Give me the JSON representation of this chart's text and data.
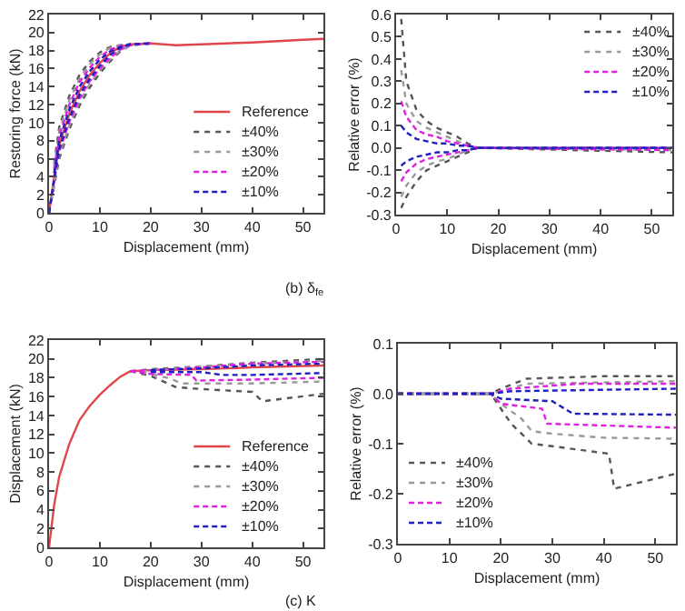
{
  "chart_data": [
    {
      "type": "line",
      "xlabel": "Displacement (mm)",
      "ylabel": "Restoring force (kN)",
      "xlim": [
        0,
        54
      ],
      "xticks": [
        0,
        10,
        20,
        30,
        40,
        50
      ],
      "ylim": [
        0,
        22
      ],
      "yticks": [
        0,
        2,
        4,
        6,
        8,
        10,
        12,
        14,
        16,
        18,
        20,
        22
      ],
      "legend": "bottom right",
      "annotations": [
        "(b) δ$_{fe}$"
      ],
      "series": [
        {
          "name": "Reference",
          "color": "#e0474c",
          "line_style": "solid",
          "x": [
            0,
            1,
            2,
            4,
            6,
            8,
            10,
            12,
            14,
            16,
            20,
            25,
            30,
            40,
            50,
            54
          ],
          "values": [
            0,
            4,
            7.5,
            11,
            13.5,
            15.3,
            16.6,
            17.7,
            18.4,
            18.7,
            18.8,
            18.6,
            18.7,
            18.9,
            19.2,
            19.3
          ]
        },
        {
          "name": "±40%",
          "color": "#555555",
          "line_style": "dotted",
          "x": [
            1,
            2,
            4,
            6,
            8,
            10,
            12,
            14,
            16
          ],
          "values": [
            5.5,
            9.5,
            13,
            15.3,
            16.8,
            17.8,
            18.4,
            18.6,
            18.7
          ]
        },
        {
          "color": "#555555",
          "line_style": "dotted",
          "x": [
            0,
            1,
            2,
            4,
            6,
            8,
            10,
            12,
            14,
            16,
            20
          ],
          "values": [
            0,
            3,
            6,
            9.3,
            11.9,
            13.9,
            15.5,
            16.8,
            17.9,
            18.6,
            18.8
          ]
        },
        {
          "name": "±30%",
          "color": "#999999",
          "line_style": "dotted",
          "x": [
            1,
            2,
            4,
            6,
            8,
            10,
            12,
            14,
            16
          ],
          "values": [
            5.2,
            9,
            12.5,
            14.9,
            16.5,
            17.6,
            18.3,
            18.6,
            18.7
          ]
        },
        {
          "color": "#999999",
          "line_style": "dotted",
          "x": [
            0,
            1,
            2,
            4,
            6,
            8,
            10,
            12,
            14,
            16,
            20
          ],
          "values": [
            0,
            3.3,
            6.4,
            9.7,
            12.3,
            14.3,
            15.8,
            17,
            18,
            18.6,
            18.8
          ]
        },
        {
          "name": "±20%",
          "color": "#e020e0",
          "line_style": "dashed",
          "x": [
            1,
            2,
            4,
            6,
            8,
            10,
            12,
            14,
            16
          ],
          "values": [
            4.8,
            8.5,
            12,
            14.5,
            16.1,
            17.3,
            18.1,
            18.5,
            18.7
          ]
        },
        {
          "color": "#e020e0",
          "line_style": "dashed",
          "x": [
            0,
            1,
            2,
            4,
            6,
            8,
            10,
            12,
            14,
            16,
            20
          ],
          "values": [
            0,
            3.5,
            6.8,
            10.1,
            12.7,
            14.6,
            16,
            17.2,
            18.1,
            18.6,
            18.8
          ]
        },
        {
          "name": "±10%",
          "color": "#2020c0",
          "line_style": "dashed",
          "x": [
            1,
            2,
            4,
            6,
            8,
            10,
            12,
            14,
            16
          ],
          "values": [
            4.4,
            8,
            11.5,
            14,
            15.7,
            17,
            17.9,
            18.4,
            18.7
          ]
        },
        {
          "color": "#2020c0",
          "line_style": "dashed",
          "x": [
            0,
            1,
            2,
            4,
            6,
            8,
            10,
            12,
            14,
            16,
            20
          ],
          "values": [
            0,
            3.7,
            7.1,
            10.5,
            13.1,
            14.9,
            16.3,
            17.5,
            18.3,
            18.7,
            18.8
          ]
        }
      ]
    },
    {
      "type": "line",
      "xlabel": "Displacement (mm)",
      "ylabel": "Relative error (%)",
      "xlim": [
        0,
        54
      ],
      "xticks": [
        0,
        10,
        20,
        30,
        40,
        50
      ],
      "ylim": [
        -0.3,
        0.6
      ],
      "yticks": [
        -0.3,
        -0.2,
        -0.1,
        {
          "value": 0,
          "label": "0.0"
        },
        0.1,
        0.2,
        0.3,
        0.4,
        0.5,
        0.6
      ],
      "legend": "top right",
      "series": [
        {
          "name": "±40%",
          "color": "#555555",
          "line_style": "dotted",
          "x": [
            1,
            2,
            4,
            6,
            8,
            10,
            12,
            14,
            16,
            54
          ],
          "values": [
            0.58,
            0.3,
            0.17,
            0.12,
            0.09,
            0.07,
            0.05,
            0.02,
            0,
            0
          ]
        },
        {
          "color": "#555555",
          "line_style": "dotted",
          "x": [
            1,
            2,
            4,
            6,
            8,
            10,
            12,
            14,
            16,
            54
          ],
          "values": [
            -0.27,
            -0.22,
            -0.15,
            -0.1,
            -0.08,
            -0.06,
            -0.04,
            -0.02,
            0,
            -0.02
          ]
        },
        {
          "name": "±30%",
          "color": "#999999",
          "line_style": "dotted",
          "x": [
            1,
            2,
            4,
            6,
            8,
            10,
            12,
            14,
            16,
            54
          ],
          "values": [
            0.35,
            0.2,
            0.12,
            0.09,
            0.07,
            0.05,
            0.03,
            0.01,
            0,
            0
          ]
        },
        {
          "color": "#999999",
          "line_style": "dotted",
          "x": [
            1,
            2,
            4,
            6,
            8,
            10,
            12,
            14,
            16,
            54
          ],
          "values": [
            -0.22,
            -0.17,
            -0.11,
            -0.08,
            -0.06,
            -0.05,
            -0.03,
            -0.01,
            0,
            -0.01
          ]
        },
        {
          "name": "±20%",
          "color": "#e020e0",
          "line_style": "dashed",
          "x": [
            1,
            2,
            4,
            6,
            8,
            10,
            12,
            14,
            16,
            54
          ],
          "values": [
            0.21,
            0.14,
            0.08,
            0.06,
            0.05,
            0.03,
            0.02,
            0.01,
            0,
            0
          ]
        },
        {
          "color": "#e020e0",
          "line_style": "dashed",
          "x": [
            1,
            2,
            4,
            6,
            8,
            10,
            12,
            14,
            16,
            54
          ],
          "values": [
            -0.15,
            -0.11,
            -0.07,
            -0.05,
            -0.04,
            -0.03,
            -0.02,
            -0.01,
            0,
            -0.01
          ]
        },
        {
          "name": "±10%",
          "color": "#2020c0",
          "line_style": "dashed",
          "x": [
            1,
            2,
            4,
            6,
            8,
            10,
            12,
            14,
            16,
            54
          ],
          "values": [
            0.1,
            0.07,
            0.04,
            0.03,
            0.02,
            0.02,
            0.01,
            0.01,
            0,
            0
          ]
        },
        {
          "color": "#2020c0",
          "line_style": "dashed",
          "x": [
            1,
            2,
            4,
            6,
            8,
            10,
            12,
            14,
            16,
            54
          ],
          "values": [
            -0.08,
            -0.06,
            -0.04,
            -0.03,
            -0.02,
            -0.02,
            -0.01,
            -0.01,
            0,
            0
          ]
        }
      ]
    },
    {
      "type": "line",
      "xlabel": "Displacement (mm)",
      "ylabel": "Displacement (kN)",
      "xlim": [
        0,
        54
      ],
      "xticks": [
        0,
        10,
        20,
        30,
        40,
        50
      ],
      "ylim": [
        0,
        22
      ],
      "yticks": [
        0,
        2,
        4,
        6,
        8,
        10,
        12,
        14,
        16,
        18,
        20,
        22
      ],
      "legend": "bottom right",
      "annotations": [
        "(c) K"
      ],
      "series": [
        {
          "name": "Reference",
          "color": "#e0474c",
          "line_style": "solid",
          "x": [
            0,
            1,
            2,
            4,
            6,
            8,
            10,
            12,
            14,
            16,
            20,
            30,
            40,
            54
          ],
          "values": [
            0,
            4.5,
            7.5,
            11,
            13.5,
            15,
            16.2,
            17.2,
            18.1,
            18.7,
            18.8,
            18.9,
            19.1,
            19.3
          ]
        },
        {
          "name": "±40%",
          "color": "#555555",
          "line_style": "dotted",
          "x": [
            16,
            20,
            30,
            40,
            54
          ],
          "values": [
            18.7,
            18.9,
            19.2,
            19.6,
            20
          ]
        },
        {
          "color": "#555555",
          "line_style": "dotted",
          "x": [
            16,
            20,
            25,
            30,
            40,
            42,
            54
          ],
          "values": [
            18.7,
            18.2,
            17,
            16.8,
            16.5,
            15.5,
            16.3
          ]
        },
        {
          "name": "±30%",
          "color": "#999999",
          "line_style": "dotted",
          "x": [
            16,
            20,
            30,
            40,
            54
          ],
          "values": [
            18.7,
            18.8,
            19.2,
            19.5,
            19.8
          ]
        },
        {
          "color": "#999999",
          "line_style": "dotted",
          "x": [
            16,
            20,
            24,
            26,
            30,
            40,
            54
          ],
          "values": [
            18.7,
            18.4,
            17.9,
            17.4,
            17.4,
            17.4,
            17.6
          ]
        },
        {
          "name": "±20%",
          "color": "#e020e0",
          "line_style": "dashed",
          "x": [
            16,
            20,
            30,
            40,
            54
          ],
          "values": [
            18.7,
            18.8,
            19.1,
            19.5,
            19.7
          ]
        },
        {
          "color": "#e020e0",
          "line_style": "dashed",
          "x": [
            16,
            20,
            28,
            29,
            40,
            54
          ],
          "values": [
            18.7,
            18.4,
            18.3,
            17.7,
            17.8,
            18
          ]
        },
        {
          "name": "±10%",
          "color": "#2020c0",
          "line_style": "dashed",
          "x": [
            20,
            30,
            40,
            54
          ],
          "values": [
            18.8,
            19,
            19.3,
            19.5
          ]
        },
        {
          "color": "#2020c0",
          "line_style": "dashed",
          "x": [
            20,
            30,
            34,
            40,
            54
          ],
          "values": [
            18.6,
            18.6,
            18.3,
            18.3,
            18.5
          ]
        }
      ]
    },
    {
      "type": "line",
      "xlabel": "Displacement (mm)",
      "ylabel": "Relative error (%)",
      "xlim": [
        0,
        54
      ],
      "xticks": [
        0,
        10,
        20,
        30,
        40,
        50
      ],
      "ylim": [
        -0.3,
        0.1
      ],
      "yticks": [
        -0.3,
        -0.2,
        -0.1,
        {
          "value": 0,
          "label": "0.0"
        },
        0.1
      ],
      "legend": "bottom left",
      "series": [
        {
          "name": "±40%",
          "color": "#555555",
          "line_style": "dotted",
          "x": [
            0,
            18,
            20,
            25,
            40,
            54
          ],
          "values": [
            0,
            0,
            0.01,
            0.03,
            0.035,
            0.035
          ]
        },
        {
          "color": "#555555",
          "line_style": "dotted",
          "x": [
            0,
            18,
            20,
            22,
            26,
            30,
            41,
            42,
            54
          ],
          "values": [
            0,
            0,
            -0.03,
            -0.06,
            -0.1,
            -0.105,
            -0.12,
            -0.19,
            -0.16
          ]
        },
        {
          "name": "±30%",
          "color": "#999999",
          "line_style": "dotted",
          "x": [
            0,
            18,
            20,
            25,
            54
          ],
          "values": [
            0,
            0,
            0.005,
            0.02,
            0.025
          ]
        },
        {
          "color": "#999999",
          "line_style": "dotted",
          "x": [
            0,
            18,
            20,
            24,
            26,
            30,
            40,
            54
          ],
          "values": [
            0,
            0,
            -0.02,
            -0.05,
            -0.075,
            -0.08,
            -0.088,
            -0.09
          ]
        },
        {
          "name": "±20%",
          "color": "#e020e0",
          "line_style": "dashed",
          "x": [
            0,
            18,
            22,
            35,
            54
          ],
          "values": [
            0,
            0,
            0.01,
            0.02,
            0.02
          ]
        },
        {
          "color": "#e020e0",
          "line_style": "dashed",
          "x": [
            0,
            18,
            20,
            28,
            29,
            54
          ],
          "values": [
            0,
            0,
            -0.02,
            -0.03,
            -0.06,
            -0.068
          ]
        },
        {
          "name": "±10%",
          "color": "#2020c0",
          "line_style": "dashed",
          "x": [
            0,
            18,
            22,
            54
          ],
          "values": [
            0,
            0,
            0.005,
            0.01
          ]
        },
        {
          "color": "#2020c0",
          "line_style": "dashed",
          "x": [
            0,
            18,
            20,
            30,
            34,
            54
          ],
          "values": [
            0,
            0,
            -0.01,
            -0.015,
            -0.04,
            -0.042
          ]
        }
      ]
    }
  ]
}
